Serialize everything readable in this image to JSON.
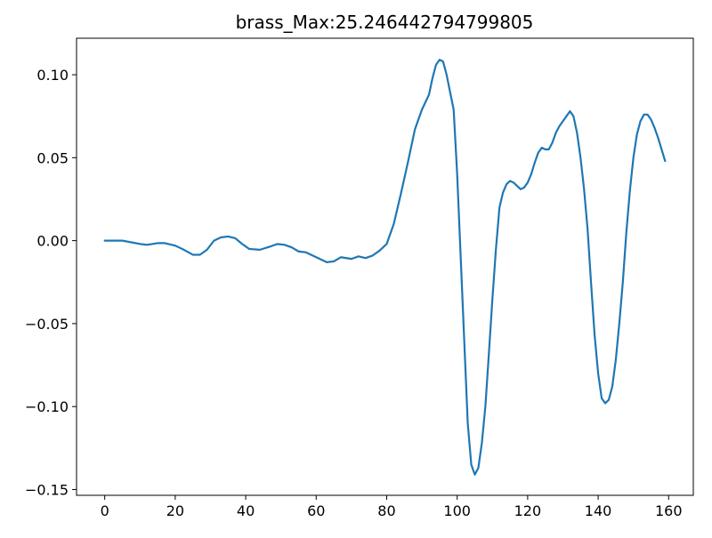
{
  "chart_data": {
    "type": "line",
    "title": "brass_Max:25.246442794799805",
    "xlabel": "",
    "ylabel": "",
    "xlim": [
      -8,
      167
    ],
    "ylim": [
      -0.1535,
      0.122
    ],
    "grid": false,
    "x_ticks": [
      0,
      20,
      40,
      60,
      80,
      100,
      120,
      140,
      160
    ],
    "x_tick_labels": [
      "0",
      "20",
      "40",
      "60",
      "80",
      "100",
      "120",
      "140",
      "160"
    ],
    "y_ticks": [
      -0.15,
      -0.1,
      -0.05,
      0.0,
      0.05,
      0.1
    ],
    "y_tick_labels": [
      "−0.15",
      "−0.10",
      "−0.05",
      "0.00",
      "0.05",
      "0.10"
    ],
    "series": [
      {
        "color": "#1f77b4",
        "x": [
          0,
          5,
          10,
          12,
          15,
          17,
          20,
          22,
          25,
          27,
          29,
          31,
          33,
          35,
          37,
          39,
          41,
          44,
          47,
          49,
          51,
          53,
          55,
          57,
          59,
          61,
          63,
          65,
          67,
          70,
          72,
          74,
          76,
          78,
          80,
          82,
          84,
          86,
          88,
          90,
          92,
          93,
          94,
          95,
          96,
          97,
          99,
          100,
          101,
          102,
          103,
          104,
          105,
          106,
          107,
          108,
          109,
          110,
          111,
          112,
          113,
          114,
          115,
          116,
          117,
          118,
          119,
          120,
          121,
          122,
          123,
          124,
          125,
          126,
          127,
          128,
          129,
          130,
          131,
          132,
          133,
          134,
          135,
          136,
          137,
          138,
          139,
          140,
          141,
          142,
          143,
          144,
          145,
          146,
          147,
          148,
          149,
          150,
          151,
          152,
          153,
          154,
          155,
          156,
          157,
          158,
          159
        ],
        "y": [
          0.0,
          0.0,
          -0.002,
          -0.0025,
          -0.0015,
          -0.0015,
          -0.003,
          -0.005,
          -0.0085,
          -0.0085,
          -0.0055,
          0.0,
          0.002,
          0.0025,
          0.0015,
          -0.002,
          -0.005,
          -0.0055,
          -0.0035,
          -0.002,
          -0.0025,
          -0.004,
          -0.0065,
          -0.007,
          -0.009,
          -0.011,
          -0.013,
          -0.0125,
          -0.01,
          -0.011,
          -0.0095,
          -0.0105,
          -0.009,
          -0.006,
          -0.002,
          0.01,
          0.028,
          0.047,
          0.067,
          0.079,
          0.088,
          0.098,
          0.106,
          0.109,
          0.108,
          0.1,
          0.079,
          0.04,
          -0.01,
          -0.06,
          -0.11,
          -0.135,
          -0.141,
          -0.137,
          -0.122,
          -0.1,
          -0.068,
          -0.035,
          -0.005,
          0.02,
          0.029,
          0.034,
          0.036,
          0.035,
          0.033,
          0.031,
          0.032,
          0.035,
          0.04,
          0.047,
          0.053,
          0.056,
          0.055,
          0.055,
          0.059,
          0.065,
          0.069,
          0.072,
          0.075,
          0.078,
          0.075,
          0.065,
          0.05,
          0.031,
          0.007,
          -0.026,
          -0.057,
          -0.08,
          -0.095,
          -0.098,
          -0.096,
          -0.088,
          -0.072,
          -0.05,
          -0.025,
          0.005,
          0.03,
          0.05,
          0.064,
          0.072,
          0.076,
          0.076,
          0.073,
          0.068,
          0.062,
          0.055,
          0.048
        ]
      }
    ]
  }
}
